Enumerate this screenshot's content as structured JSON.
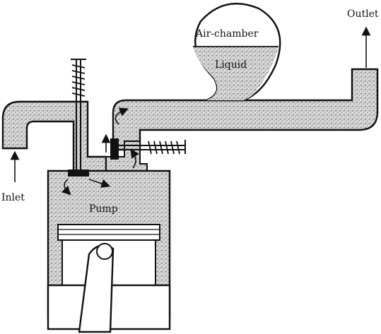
{
  "labels": {
    "outlet": "Outlet",
    "air_chamber": "Air-chamber",
    "liquid": "Liquid",
    "inlet": "Inlet",
    "pump": "Pump"
  },
  "colors": {
    "ink": "#111111",
    "fill": "#d9d9d9",
    "dots": "#3c3c3c",
    "paper": "#ffffff"
  }
}
